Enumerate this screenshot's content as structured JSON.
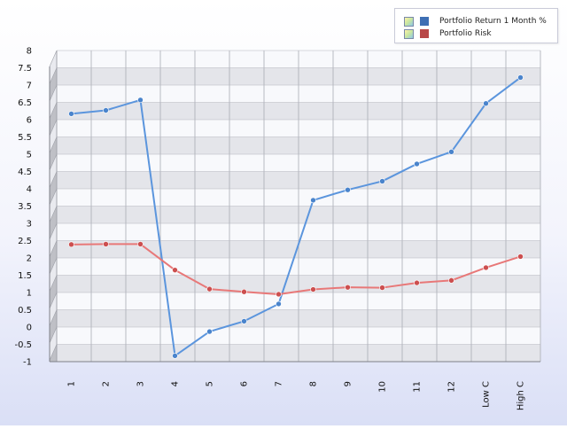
{
  "chart_data": {
    "type": "line",
    "categories": [
      "1",
      "2",
      "3",
      "4",
      "5",
      "6",
      "7",
      "8",
      "9",
      "10",
      "11",
      "12",
      "Low C",
      "High C"
    ],
    "ylim": [
      -1,
      8
    ],
    "ytick_step": 0.5,
    "grid": true,
    "legend_position": "top-right",
    "series": [
      {
        "name": "Portfolio Return 1 Month %",
        "color": "#5b95dd",
        "marker_color": "#4a84cc",
        "legend_swatch": "#3e6fb4",
        "values": [
          6.4,
          6.5,
          6.8,
          -0.6,
          0.1,
          0.4,
          0.9,
          3.9,
          4.2,
          4.45,
          4.95,
          5.3,
          6.7,
          7.45
        ]
      },
      {
        "name": "Portfolio Risk",
        "color": "#e87878",
        "marker_color": "#cc4f4f",
        "legend_swatch": "#b84747",
        "values": [
          2.62,
          2.63,
          2.63,
          1.88,
          1.33,
          1.25,
          1.18,
          1.32,
          1.38,
          1.37,
          1.51,
          1.58,
          1.95,
          2.27
        ]
      }
    ]
  }
}
